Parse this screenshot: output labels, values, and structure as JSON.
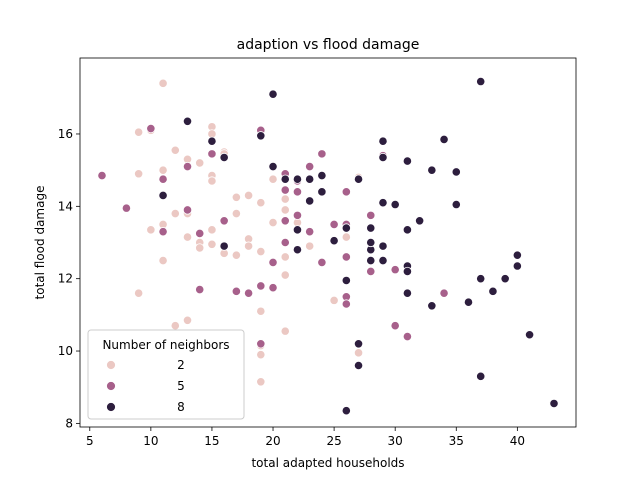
{
  "chart_data": {
    "type": "scatter",
    "title": "adaption vs flood damage",
    "xlabel": "total adapted households",
    "ylabel": "total flood damage",
    "xlim": [
      4.2,
      44.8
    ],
    "ylim": [
      7.9,
      18.1
    ],
    "xticks": [
      5,
      10,
      15,
      20,
      25,
      30,
      35,
      40
    ],
    "yticks": [
      8,
      10,
      12,
      14,
      16
    ],
    "grid": false,
    "legend": {
      "title": "Number of neighbors",
      "placement": "lower-left",
      "entries": [
        {
          "label": "2",
          "color": "#ebc8c3"
        },
        {
          "label": "5",
          "color": "#a7608b"
        },
        {
          "label": "8",
          "color": "#2d1e3e"
        }
      ]
    },
    "series": [
      {
        "neighbors": 2,
        "color": "#ebc8c3",
        "points": [
          [
            11,
            17.4
          ],
          [
            9,
            16.05
          ],
          [
            10,
            16.1
          ],
          [
            15,
            16.2
          ],
          [
            12,
            15.55
          ],
          [
            13,
            15.3
          ],
          [
            14,
            15.2
          ],
          [
            16,
            15.5
          ],
          [
            11,
            15.0
          ],
          [
            15,
            14.85
          ],
          [
            15,
            14.7
          ],
          [
            11,
            14.3
          ],
          [
            9,
            14.9
          ],
          [
            17,
            14.25
          ],
          [
            18,
            14.3
          ],
          [
            20,
            14.75
          ],
          [
            21,
            14.2
          ],
          [
            19,
            14.1
          ],
          [
            21,
            13.9
          ],
          [
            20,
            13.55
          ],
          [
            22,
            13.55
          ],
          [
            13,
            13.8
          ],
          [
            12,
            13.8
          ],
          [
            17,
            13.8
          ],
          [
            10,
            13.35
          ],
          [
            11,
            13.5
          ],
          [
            13,
            13.15
          ],
          [
            14,
            13.0
          ],
          [
            15,
            13.35
          ],
          [
            14,
            12.85
          ],
          [
            15,
            12.95
          ],
          [
            16,
            12.7
          ],
          [
            17,
            12.65
          ],
          [
            18,
            13.1
          ],
          [
            18,
            12.9
          ],
          [
            19,
            12.75
          ],
          [
            21,
            12.6
          ],
          [
            11,
            12.5
          ],
          [
            21,
            12.1
          ],
          [
            23,
            12.9
          ],
          [
            25,
            11.4
          ],
          [
            26,
            13.15
          ],
          [
            27,
            14.8
          ],
          [
            9,
            11.6
          ],
          [
            19,
            11.1
          ],
          [
            13,
            10.85
          ],
          [
            12,
            10.7
          ],
          [
            21,
            10.55
          ],
          [
            19,
            10.15
          ],
          [
            19,
            9.9
          ],
          [
            27,
            9.95
          ],
          [
            19,
            9.15
          ],
          [
            15,
            16.0
          ],
          [
            16,
            15.45
          ]
        ]
      },
      {
        "neighbors": 5,
        "color": "#a7608b",
        "points": [
          [
            6,
            14.85
          ],
          [
            8,
            13.95
          ],
          [
            10,
            16.15
          ],
          [
            11,
            14.75
          ],
          [
            11,
            13.3
          ],
          [
            13,
            15.1
          ],
          [
            13,
            13.9
          ],
          [
            14,
            13.25
          ],
          [
            14,
            11.7
          ],
          [
            16,
            13.6
          ],
          [
            17,
            11.65
          ],
          [
            18,
            11.6
          ],
          [
            19,
            16.1
          ],
          [
            19,
            11.8
          ],
          [
            19,
            10.2
          ],
          [
            20,
            12.45
          ],
          [
            20,
            11.75
          ],
          [
            21,
            14.9
          ],
          [
            21,
            14.45
          ],
          [
            21,
            13.6
          ],
          [
            21,
            13.0
          ],
          [
            22,
            14.7
          ],
          [
            22,
            13.75
          ],
          [
            23,
            15.1
          ],
          [
            23,
            13.3
          ],
          [
            24,
            15.45
          ],
          [
            24,
            12.45
          ],
          [
            25,
            13.5
          ],
          [
            26,
            13.5
          ],
          [
            26,
            14.4
          ],
          [
            26,
            12.6
          ],
          [
            26,
            11.5
          ],
          [
            26,
            11.3
          ],
          [
            27,
            14.75
          ],
          [
            28,
            13.75
          ],
          [
            28,
            12.2
          ],
          [
            29,
            15.4
          ],
          [
            30,
            12.25
          ],
          [
            30,
            10.7
          ],
          [
            31,
            10.4
          ],
          [
            34,
            11.6
          ],
          [
            15,
            15.45
          ],
          [
            22,
            14.4
          ]
        ]
      },
      {
        "neighbors": 8,
        "color": "#2d1e3e",
        "points": [
          [
            13,
            16.35
          ],
          [
            15,
            15.8
          ],
          [
            16,
            15.35
          ],
          [
            20,
            17.1
          ],
          [
            19,
            15.95
          ],
          [
            20,
            15.1
          ],
          [
            21,
            14.75
          ],
          [
            22,
            14.75
          ],
          [
            23,
            14.75
          ],
          [
            24,
            14.85
          ],
          [
            24,
            14.4
          ],
          [
            23,
            14.15
          ],
          [
            22,
            13.35
          ],
          [
            22,
            12.8
          ],
          [
            16,
            12.9
          ],
          [
            25,
            13.05
          ],
          [
            26,
            13.4
          ],
          [
            26,
            11.95
          ],
          [
            27,
            14.75
          ],
          [
            28,
            13.4
          ],
          [
            28,
            12.8
          ],
          [
            28,
            12.5
          ],
          [
            28,
            13.0
          ],
          [
            29,
            15.8
          ],
          [
            29,
            15.35
          ],
          [
            29,
            14.1
          ],
          [
            29,
            12.9
          ],
          [
            29,
            12.5
          ],
          [
            30,
            14.05
          ],
          [
            31,
            15.25
          ],
          [
            31,
            13.35
          ],
          [
            31,
            12.35
          ],
          [
            31,
            12.2
          ],
          [
            31,
            11.6
          ],
          [
            32,
            13.6
          ],
          [
            33,
            15.0
          ],
          [
            33,
            11.25
          ],
          [
            34,
            15.85
          ],
          [
            35,
            14.95
          ],
          [
            35,
            14.05
          ],
          [
            36,
            11.35
          ],
          [
            37,
            17.45
          ],
          [
            37,
            12.0
          ],
          [
            37,
            9.3
          ],
          [
            38,
            11.65
          ],
          [
            39,
            12.0
          ],
          [
            40,
            12.65
          ],
          [
            40,
            12.35
          ],
          [
            41,
            10.45
          ],
          [
            43,
            8.55
          ],
          [
            27,
            10.2
          ],
          [
            27,
            9.6
          ],
          [
            26,
            8.35
          ],
          [
            11,
            14.3
          ]
        ]
      }
    ]
  }
}
